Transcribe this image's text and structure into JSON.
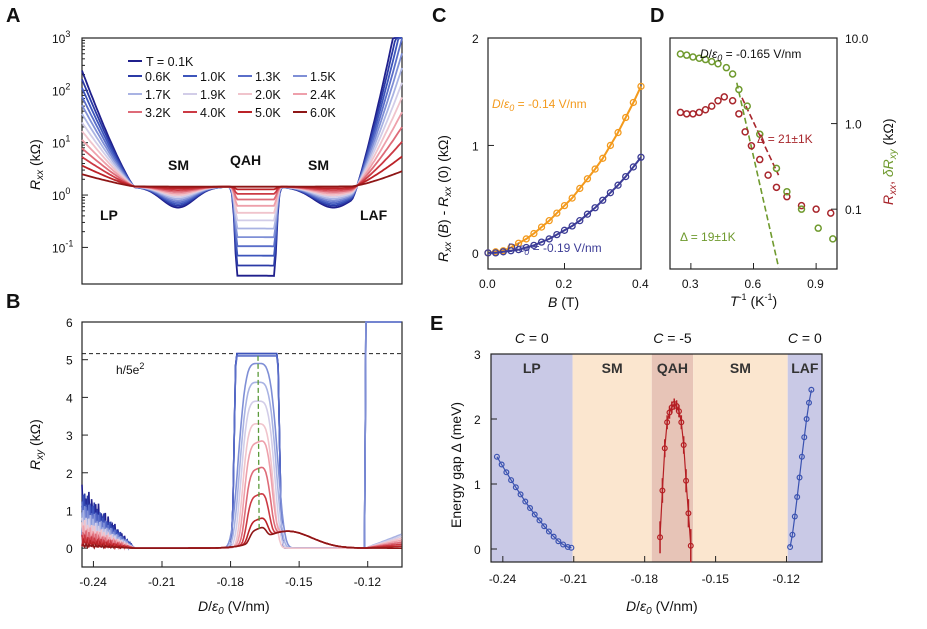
{
  "chart_data": [
    {
      "id": "A",
      "type": "line",
      "panel_label": "A",
      "xlabel": "",
      "ylabel": "Rxx (kΩ)",
      "yscale": "log",
      "xlim": [
        -0.245,
        -0.105
      ],
      "ylim": [
        0.02,
        1000
      ],
      "ytick_labels": [
        "10^-1",
        "10^0",
        "10^1",
        "10^2",
        "10^3"
      ],
      "region_labels": [
        "LP",
        "SM",
        "QAH",
        "SM",
        "LAF"
      ],
      "legend": [
        "T = 0.1K",
        "0.6K",
        "1.0K",
        "1.3K",
        "1.5K",
        "1.7K",
        "1.9K",
        "2.0K",
        "2.4K",
        "3.2K",
        "4.0K",
        "5.0K",
        "6.0K"
      ],
      "series_colors": [
        "#1f1f8c",
        "#2b3aa6",
        "#3d55bb",
        "#5a6ec9",
        "#7f8fd6",
        "#a9b3e3",
        "#d2cde8",
        "#f0c4cc",
        "#eea0ab",
        "#de6b78",
        "#cc3a44",
        "#bb2227",
        "#8e1616"
      ]
    },
    {
      "id": "B",
      "type": "line",
      "panel_label": "B",
      "xlabel": "D/ε0 (V/nm)",
      "ylabel": "Rxy (kΩ)",
      "xlim": [
        -0.245,
        -0.105
      ],
      "ylim": [
        -0.5,
        6
      ],
      "xticks": [
        -0.24,
        -0.21,
        -0.18,
        -0.15,
        -0.12
      ],
      "yticks": [
        0,
        1,
        2,
        3,
        4,
        5,
        6
      ],
      "annotation": "h/5e²",
      "plateau_value": 5.16,
      "series": [
        {
          "name": "0.1K",
          "plateau": 5.16
        },
        {
          "name": "0.6K",
          "plateau": 5.16
        },
        {
          "name": "1.0K",
          "plateau": 5.16
        },
        {
          "name": "1.3K",
          "plateau": 5.1
        },
        {
          "name": "1.5K",
          "plateau": 4.9
        },
        {
          "name": "1.7K",
          "plateau": 4.4
        },
        {
          "name": "1.9K",
          "plateau": 3.9
        },
        {
          "name": "2.0K",
          "plateau": 3.3
        },
        {
          "name": "2.4K",
          "plateau": 2.6
        },
        {
          "name": "3.2K",
          "plateau": 1.9
        },
        {
          "name": "4.0K",
          "plateau": 1.2
        },
        {
          "name": "5.0K",
          "plateau": 0.55
        },
        {
          "name": "6.0K",
          "plateau": 0.3
        }
      ]
    },
    {
      "id": "C",
      "type": "scatter",
      "panel_label": "C",
      "xlabel": "B (T)",
      "ylabel": "Rxx (B) - Rxx (0) (kΩ)",
      "xlim": [
        0,
        0.4
      ],
      "ylim": [
        -0.15,
        2
      ],
      "xticks": [
        0.0,
        0.2,
        0.4
      ],
      "yticks": [
        0,
        1,
        2
      ],
      "series": [
        {
          "name": "D/ε0 = -0.14 V/nm",
          "color": "#f39a1d",
          "x": [
            0.0,
            0.02,
            0.04,
            0.06,
            0.08,
            0.1,
            0.12,
            0.14,
            0.16,
            0.18,
            0.2,
            0.22,
            0.24,
            0.26,
            0.28,
            0.3,
            0.32,
            0.34,
            0.36,
            0.38,
            0.4
          ],
          "y": [
            0.0,
            0.01,
            0.02,
            0.05,
            0.09,
            0.13,
            0.18,
            0.24,
            0.3,
            0.37,
            0.44,
            0.51,
            0.6,
            0.69,
            0.78,
            0.88,
            1.0,
            1.12,
            1.26,
            1.4,
            1.55
          ]
        },
        {
          "name": "D/ε0 = -0.19 V/nm",
          "color": "#3c3c96",
          "x": [
            0.0,
            0.02,
            0.04,
            0.06,
            0.08,
            0.1,
            0.12,
            0.14,
            0.16,
            0.18,
            0.2,
            0.22,
            0.24,
            0.26,
            0.28,
            0.3,
            0.32,
            0.34,
            0.36,
            0.38,
            0.4
          ],
          "y": [
            0.0,
            0.0,
            0.01,
            0.02,
            0.03,
            0.05,
            0.07,
            0.1,
            0.13,
            0.17,
            0.21,
            0.25,
            0.3,
            0.36,
            0.42,
            0.49,
            0.56,
            0.63,
            0.71,
            0.8,
            0.89
          ]
        }
      ]
    },
    {
      "id": "D",
      "type": "scatter",
      "panel_label": "D",
      "title": "D/ε0 = -0.165 V/nm",
      "xlabel": "T^-1 (K^-1)",
      "ylabel": "Rxx, δRxy (kΩ)",
      "yscale": "log",
      "xlim": [
        0.2,
        1.0
      ],
      "ylim": [
        0.02,
        10
      ],
      "xticks": [
        0.3,
        0.6,
        0.9
      ],
      "yticks": [
        0.1,
        1.0,
        10.0
      ],
      "series": [
        {
          "name": "Rxx",
          "color": "#a8262c",
          "fit_label": "Δ = 21±1K",
          "x": [
            0.25,
            0.28,
            0.31,
            0.34,
            0.37,
            0.4,
            0.43,
            0.46,
            0.5,
            0.53,
            0.56,
            0.59,
            0.63,
            0.67,
            0.71,
            0.76,
            0.83,
            0.9,
            0.97
          ],
          "y": [
            1.35,
            1.3,
            1.3,
            1.35,
            1.45,
            1.6,
            1.85,
            2.05,
            1.85,
            1.3,
            0.8,
            0.55,
            0.38,
            0.25,
            0.18,
            0.14,
            0.11,
            0.1,
            0.09
          ]
        },
        {
          "name": "δRxy",
          "color": "#6f9a2e",
          "fit_label": "Δ = 19±1K",
          "x": [
            0.25,
            0.28,
            0.31,
            0.34,
            0.37,
            0.4,
            0.43,
            0.47,
            0.5,
            0.53,
            0.57,
            0.63,
            0.71,
            0.76,
            0.83,
            0.91,
            0.98
          ],
          "y": [
            6.5,
            6.3,
            6.0,
            5.8,
            5.6,
            5.3,
            5.0,
            4.5,
            3.8,
            2.5,
            1.6,
            0.75,
            0.3,
            0.16,
            0.1,
            0.06,
            0.045
          ]
        }
      ]
    },
    {
      "id": "E",
      "type": "scatter",
      "panel_label": "E",
      "xlabel": "D/ε0 (V/nm)",
      "ylabel": "Energy gap Δ (meV)",
      "xlim": [
        -0.245,
        -0.105
      ],
      "ylim": [
        -0.2,
        3
      ],
      "xticks": [
        -0.24,
        -0.21,
        -0.18,
        -0.15,
        -0.12
      ],
      "yticks": [
        0,
        1,
        2,
        3
      ],
      "phases": [
        {
          "name": "LP",
          "chern": "C = 0",
          "from": -0.245,
          "to": -0.2105,
          "color": "#c9c9e6"
        },
        {
          "name": "SM",
          "chern": "",
          "from": -0.2105,
          "to": -0.177,
          "color": "#fbe6cf"
        },
        {
          "name": "QAH",
          "chern": "C = -5",
          "from": -0.177,
          "to": -0.1595,
          "color": "#e7c4b7"
        },
        {
          "name": "SM",
          "chern": "",
          "from": -0.1595,
          "to": -0.1195,
          "color": "#fbe6cf"
        },
        {
          "name": "LAF",
          "chern": "C = 0",
          "from": -0.1195,
          "to": -0.105,
          "color": "#c9c9e6"
        }
      ],
      "series": [
        {
          "name": "LP gap",
          "color": "#3a52b0",
          "x": [
            -0.2425,
            -0.2405,
            -0.2385,
            -0.2365,
            -0.2345,
            -0.2325,
            -0.2305,
            -0.2285,
            -0.2265,
            -0.2245,
            -0.2225,
            -0.2205,
            -0.2185,
            -0.2165,
            -0.2145,
            -0.2125,
            -0.211
          ],
          "y": [
            1.42,
            1.3,
            1.18,
            1.06,
            0.95,
            0.84,
            0.73,
            0.63,
            0.53,
            0.44,
            0.35,
            0.27,
            0.19,
            0.12,
            0.07,
            0.03,
            0.02
          ]
        },
        {
          "name": "QAH gap",
          "color": "#b51f24",
          "x": [
            -0.1735,
            -0.1725,
            -0.1715,
            -0.1705,
            -0.1695,
            -0.1685,
            -0.1675,
            -0.1665,
            -0.1655,
            -0.1645,
            -0.1635,
            -0.1625,
            -0.1615,
            -0.1605
          ],
          "y": [
            0.18,
            0.9,
            1.55,
            1.95,
            2.1,
            2.18,
            2.23,
            2.2,
            2.12,
            1.95,
            1.6,
            1.05,
            0.55,
            0.05
          ]
        },
        {
          "name": "LAF gap",
          "color": "#3a52b0",
          "x": [
            -0.1185,
            -0.1175,
            -0.1165,
            -0.1155,
            -0.1145,
            -0.1135,
            -0.1125,
            -0.1115,
            -0.1105,
            -0.1095
          ],
          "y": [
            0.03,
            0.22,
            0.5,
            0.8,
            1.1,
            1.42,
            1.72,
            2.0,
            2.25,
            2.45
          ]
        }
      ]
    }
  ]
}
